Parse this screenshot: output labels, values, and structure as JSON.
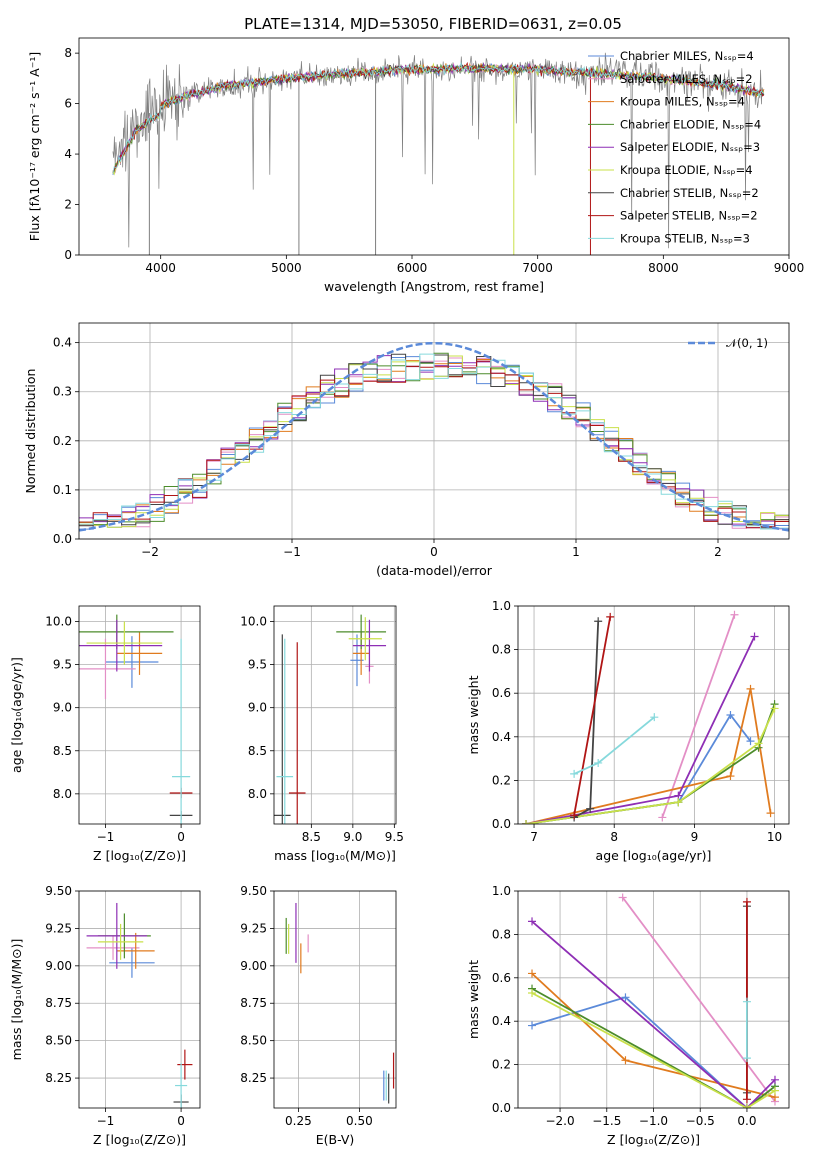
{
  "title": "PLATE=1314, MJD=53050, FIBERID=0631, z=0.05",
  "colors": {
    "Chabrier MILES": "#5b8ad9",
    "Salpeter MILES": "#e38fc6",
    "Kroupa MILES": "#e07b1f",
    "Chabrier ELODIE": "#4c8c2b",
    "Salpeter ELODIE": "#8e2fb5",
    "Kroupa ELODIE": "#c9e04a",
    "Chabrier STELIB": "#444444",
    "Salpeter STELIB": "#b01515",
    "Kroupa STELIB": "#86d9dc",
    "data": "#7f7f7f",
    "normal": "#5b8ad9"
  },
  "chart_data": [
    {
      "id": "spectrum",
      "type": "line",
      "title": "PLATE=1314, MJD=53050, FIBERID=0631, z=0.05",
      "xlabel": "wavelength [Angstrom, rest frame]",
      "ylabel": "Flux [fλ10⁻¹⁷ erg cm⁻² s⁻¹ A⁻¹]",
      "xlim": [
        3350,
        9000
      ],
      "ylim": [
        0,
        8.6
      ],
      "xticks": [
        "4000",
        "5000",
        "6000",
        "7000",
        "8000",
        "9000"
      ],
      "yticks": [
        "0",
        "2",
        "4",
        "6",
        "8"
      ],
      "grid": false,
      "legend_position": "top-right",
      "legend": [
        {
          "label": "Chabrier MILES, Nₛₛₚ=4",
          "series": "Chabrier MILES"
        },
        {
          "label": "Salpeter MILES, Nₛₛₚ=2",
          "series": "Salpeter MILES"
        },
        {
          "label": "Kroupa MILES, Nₛₛₚ=4",
          "series": "Kroupa MILES"
        },
        {
          "label": "Chabrier ELODIE, Nₛₛₚ=4",
          "series": "Chabrier ELODIE"
        },
        {
          "label": "Salpeter ELODIE, Nₛₛₚ=3",
          "series": "Salpeter ELODIE"
        },
        {
          "label": "Kroupa ELODIE, Nₛₛₚ=4",
          "series": "Kroupa ELODIE"
        },
        {
          "label": "Chabrier STELIB, Nₛₛₚ=2",
          "series": "Chabrier STELIB"
        },
        {
          "label": "Salpeter STELIB, Nₛₛₚ=2",
          "series": "Salpeter STELIB"
        },
        {
          "label": "Kroupa STELIB, Nₛₛₚ=3",
          "series": "Kroupa STELIB"
        }
      ],
      "continuum": [
        [
          3620,
          3.6
        ],
        [
          3700,
          4.3
        ],
        [
          3800,
          5.2
        ],
        [
          3900,
          5.6
        ],
        [
          4000,
          5.9
        ],
        [
          4200,
          6.3
        ],
        [
          4500,
          6.7
        ],
        [
          5000,
          7.0
        ],
        [
          5500,
          7.2
        ],
        [
          6000,
          7.35
        ],
        [
          6500,
          7.4
        ],
        [
          7000,
          7.35
        ],
        [
          7500,
          7.2
        ],
        [
          8000,
          7.0
        ],
        [
          8500,
          6.7
        ],
        [
          8800,
          6.4
        ]
      ]
    },
    {
      "id": "residuals",
      "type": "histogram",
      "xlabel": "(data-model)/error",
      "ylabel": "Normed distribution",
      "xlim": [
        -2.5,
        2.5
      ],
      "ylim": [
        0,
        0.44
      ],
      "xticks": [
        "−2",
        "−1",
        "0",
        "1",
        "2"
      ],
      "yticks": [
        "0.0",
        "0.1",
        "0.2",
        "0.3",
        "0.4"
      ],
      "grid": true,
      "legend_position": "top-right",
      "legend": [
        {
          "label": "𝒩(0, 1)",
          "series": "normal"
        }
      ],
      "bin_width": 0.1,
      "bins_from": -2.5
    },
    {
      "id": "age_vs_Z",
      "type": "errorbar",
      "xlabel": "Z [log₁₀(Z/Z⊙)]",
      "ylabel": "age  [log₁₀(age/yr)]",
      "xlim": [
        -1.35,
        0.25
      ],
      "ylim": [
        7.65,
        10.18
      ],
      "xticks": [
        "−1",
        "0"
      ],
      "yticks": [
        "8.0",
        "8.5",
        "9.0",
        "9.5",
        "10.0"
      ],
      "grid": true,
      "points": [
        {
          "series": "Chabrier MILES",
          "x": -0.65,
          "xerr": 0.35,
          "y": 9.53,
          "yerr": 0.3
        },
        {
          "series": "Salpeter MILES",
          "x": -1.0,
          "xerr": 0.4,
          "y": 9.45,
          "yerr": 0.35
        },
        {
          "series": "Kroupa MILES",
          "x": -0.55,
          "xerr": 0.3,
          "y": 9.63,
          "yerr": 0.25
        },
        {
          "series": "Chabrier ELODIE",
          "x": -0.85,
          "xerr": 0.75,
          "y": 9.88,
          "yerr": 0.2
        },
        {
          "series": "Salpeter ELODIE",
          "x": -0.85,
          "xerr": 0.6,
          "y": 9.72,
          "yerr": 0.3
        },
        {
          "series": "Kroupa ELODIE",
          "x": -0.75,
          "xerr": 0.5,
          "y": 9.75,
          "yerr": 0.25
        },
        {
          "series": "Chabrier STELIB",
          "x": 0.0,
          "xerr": 0.15,
          "y": 7.75,
          "yerr": 0.05
        },
        {
          "series": "Salpeter STELIB",
          "x": 0.0,
          "xerr": 0.15,
          "y": 8.01,
          "yerr": 0.06
        },
        {
          "series": "Kroupa STELIB",
          "x": 0.0,
          "xerr": 0.12,
          "y": 8.2,
          "yerr": 1.6
        }
      ]
    },
    {
      "id": "age_vs_mass",
      "type": "errorbar",
      "xlabel": "mass [log₁₀(M/M⊙)]",
      "xlim": [
        8.05,
        9.52
      ],
      "ylim": [
        7.65,
        10.18
      ],
      "xticks": [
        "8.5",
        "9.0",
        "9.5"
      ],
      "yticks": [
        "8.0",
        "8.5",
        "9.0",
        "9.5",
        "10.0"
      ],
      "grid": true,
      "points": [
        {
          "series": "Chabrier MILES",
          "x": 9.05,
          "xerr": 0.08,
          "y": 9.55,
          "yerr": 0.3
        },
        {
          "series": "Salpeter MILES",
          "x": 9.2,
          "xerr": 0.05,
          "y": 9.48,
          "yerr": 0.2
        },
        {
          "series": "Kroupa MILES",
          "x": 9.1,
          "xerr": 0.1,
          "y": 9.63,
          "yerr": 0.25
        },
        {
          "series": "Chabrier ELODIE",
          "x": 9.1,
          "xerr": 0.3,
          "y": 9.88,
          "yerr": 0.2
        },
        {
          "series": "Salpeter ELODIE",
          "x": 9.2,
          "xerr": 0.2,
          "y": 9.72,
          "yerr": 0.3
        },
        {
          "series": "Kroupa ELODIE",
          "x": 9.15,
          "xerr": 0.2,
          "y": 9.8,
          "yerr": 0.25
        },
        {
          "series": "Chabrier STELIB",
          "x": 8.15,
          "xerr": 0.1,
          "y": 7.75,
          "yerr": 2.1
        },
        {
          "series": "Salpeter STELIB",
          "x": 8.33,
          "xerr": 0.1,
          "y": 8.01,
          "yerr": 1.75
        },
        {
          "series": "Kroupa STELIB",
          "x": 8.18,
          "xerr": 0.1,
          "y": 8.2,
          "yerr": 1.6
        }
      ]
    },
    {
      "id": "weight_vs_age",
      "type": "line",
      "xlabel": "age  [log₁₀(age/yr)]",
      "ylabel": "mass weight",
      "xlim": [
        6.8,
        10.18
      ],
      "ylim": [
        0,
        1.0
      ],
      "xticks": [
        "7",
        "8",
        "9",
        "10"
      ],
      "yticks": [
        "0.0",
        "0.2",
        "0.4",
        "0.6",
        "0.8",
        "1.0"
      ],
      "grid": true,
      "series": [
        {
          "series": "Chabrier MILES",
          "x": [
            6.9,
            8.8,
            9.45,
            9.7
          ],
          "y": [
            0.0,
            0.1,
            0.5,
            0.38
          ]
        },
        {
          "series": "Salpeter MILES",
          "x": [
            8.6,
            9.5
          ],
          "y": [
            0.03,
            0.96
          ]
        },
        {
          "series": "Kroupa MILES",
          "x": [
            6.9,
            9.45,
            9.7,
            9.95
          ],
          "y": [
            0.0,
            0.22,
            0.62,
            0.05
          ]
        },
        {
          "series": "Chabrier ELODIE",
          "x": [
            6.9,
            8.8,
            9.8,
            10.0
          ],
          "y": [
            0.0,
            0.1,
            0.35,
            0.55
          ]
        },
        {
          "series": "Salpeter ELODIE",
          "x": [
            6.9,
            7.5,
            8.8,
            9.75
          ],
          "y": [
            0.0,
            0.04,
            0.13,
            0.86
          ]
        },
        {
          "series": "Kroupa ELODIE",
          "x": [
            6.9,
            8.8,
            9.8,
            10.0
          ],
          "y": [
            0.0,
            0.1,
            0.37,
            0.53
          ]
        },
        {
          "series": "Chabrier STELIB",
          "x": [
            7.5,
            7.7,
            7.8
          ],
          "y": [
            0.03,
            0.07,
            0.93
          ]
        },
        {
          "series": "Salpeter STELIB",
          "x": [
            7.5,
            7.95
          ],
          "y": [
            0.04,
            0.95
          ]
        },
        {
          "series": "Kroupa STELIB",
          "x": [
            7.5,
            7.8,
            8.5
          ],
          "y": [
            0.23,
            0.28,
            0.49
          ]
        }
      ]
    },
    {
      "id": "mass_vs_Z",
      "type": "errorbar",
      "xlabel": "Z [log₁₀(Z/Z⊙)]",
      "ylabel": "mass [log₁₀(M/M⊙)]",
      "xlim": [
        -1.35,
        0.25
      ],
      "ylim": [
        8.05,
        9.5
      ],
      "xticks": [
        "−1",
        "0"
      ],
      "yticks": [
        "8.25",
        "8.50",
        "8.75",
        "9.00",
        "9.25",
        "9.50"
      ],
      "grid": true,
      "points": [
        {
          "series": "Chabrier MILES",
          "x": -0.65,
          "xerr": 0.3,
          "y": 9.02,
          "yerr": 0.1
        },
        {
          "series": "Salpeter MILES",
          "x": -0.9,
          "xerr": 0.35,
          "y": 9.12,
          "yerr": 0.08
        },
        {
          "series": "Kroupa MILES",
          "x": -0.6,
          "xerr": 0.25,
          "y": 9.1,
          "yerr": 0.12
        },
        {
          "series": "Chabrier ELODIE",
          "x": -0.75,
          "xerr": 0.35,
          "y": 9.2,
          "yerr": 0.15
        },
        {
          "series": "Salpeter ELODIE",
          "x": -0.85,
          "xerr": 0.4,
          "y": 9.2,
          "yerr": 0.22
        },
        {
          "series": "Kroupa ELODIE",
          "x": -0.8,
          "xerr": 0.3,
          "y": 9.16,
          "yerr": 0.12
        },
        {
          "series": "Chabrier STELIB",
          "x": 0.0,
          "xerr": 0.1,
          "y": 8.09,
          "yerr": 0.05
        },
        {
          "series": "Salpeter STELIB",
          "x": 0.05,
          "xerr": 0.1,
          "y": 8.34,
          "yerr": 0.1
        },
        {
          "series": "Kroupa STELIB",
          "x": 0.0,
          "xerr": 0.08,
          "y": 8.2,
          "yerr": 0.15
        }
      ]
    },
    {
      "id": "mass_vs_ebv",
      "type": "errorbar",
      "xlabel": "E(B-V)",
      "xlim": [
        0.15,
        0.65
      ],
      "ylim": [
        8.05,
        9.5
      ],
      "xticks": [
        "0.25",
        "0.50"
      ],
      "yticks": [
        "8.25",
        "8.50",
        "8.75",
        "9.00",
        "9.25",
        "9.50"
      ],
      "grid": true,
      "points": [
        {
          "series": "Chabrier MILES",
          "x": 0.6,
          "xerr": 0.0,
          "y": 8.2,
          "yerr": 0.1
        },
        {
          "series": "Salpeter MILES",
          "x": 0.29,
          "xerr": 0.0,
          "y": 9.15,
          "yerr": 0.06
        },
        {
          "series": "Kroupa MILES",
          "x": 0.26,
          "xerr": 0.0,
          "y": 9.05,
          "yerr": 0.1
        },
        {
          "series": "Chabrier ELODIE",
          "x": 0.2,
          "xerr": 0.0,
          "y": 9.2,
          "yerr": 0.12
        },
        {
          "series": "Salpeter ELODIE",
          "x": 0.24,
          "xerr": 0.0,
          "y": 9.22,
          "yerr": 0.2
        },
        {
          "series": "Kroupa ELODIE",
          "x": 0.21,
          "xerr": 0.0,
          "y": 9.18,
          "yerr": 0.1
        },
        {
          "series": "Chabrier STELIB",
          "x": 0.62,
          "xerr": 0.0,
          "y": 8.18,
          "yerr": 0.1
        },
        {
          "series": "Salpeter STELIB",
          "x": 0.64,
          "xerr": 0.0,
          "y": 8.3,
          "yerr": 0.12
        },
        {
          "series": "Kroupa STELIB",
          "x": 0.61,
          "xerr": 0.0,
          "y": 8.2,
          "yerr": 0.1
        }
      ]
    },
    {
      "id": "weight_vs_Z",
      "type": "line",
      "xlabel": "Z [log₁₀(Z/Z⊙)]",
      "ylabel": "mass weight",
      "xlim": [
        -2.45,
        0.45
      ],
      "ylim": [
        0,
        1.0
      ],
      "xticks": [
        "−2.0",
        "−1.5",
        "−1.0",
        "−0.5",
        "0.0"
      ],
      "yticks": [
        "0.0",
        "0.2",
        "0.4",
        "0.6",
        "0.8",
        "1.0"
      ],
      "grid": true,
      "series": [
        {
          "series": "Chabrier MILES",
          "x": [
            -2.3,
            -1.3,
            0.0,
            0.3
          ],
          "y": [
            0.38,
            0.51,
            0.0,
            0.1
          ]
        },
        {
          "series": "Salpeter MILES",
          "x": [
            -1.33,
            0.3
          ],
          "y": [
            0.97,
            0.03
          ]
        },
        {
          "series": "Kroupa MILES",
          "x": [
            -2.3,
            -1.3,
            0.3
          ],
          "y": [
            0.62,
            0.22,
            0.05
          ]
        },
        {
          "series": "Chabrier ELODIE",
          "x": [
            -2.3,
            0.0,
            0.3
          ],
          "y": [
            0.55,
            0.0,
            0.1
          ]
        },
        {
          "series": "Salpeter ELODIE",
          "x": [
            -2.3,
            0.0,
            0.3
          ],
          "y": [
            0.86,
            0.0,
            0.13
          ]
        },
        {
          "series": "Kroupa ELODIE",
          "x": [
            -2.3,
            0.0,
            0.3
          ],
          "y": [
            0.53,
            0.0,
            0.08
          ]
        },
        {
          "series": "Chabrier STELIB",
          "x": [
            0.0,
            0.0
          ],
          "y": [
            0.07,
            0.93
          ]
        },
        {
          "series": "Salpeter STELIB",
          "x": [
            0.0,
            0.0
          ],
          "y": [
            0.04,
            0.95
          ]
        },
        {
          "series": "Kroupa STELIB",
          "x": [
            0.0,
            0.0
          ],
          "y": [
            0.23,
            0.49
          ]
        }
      ]
    }
  ]
}
